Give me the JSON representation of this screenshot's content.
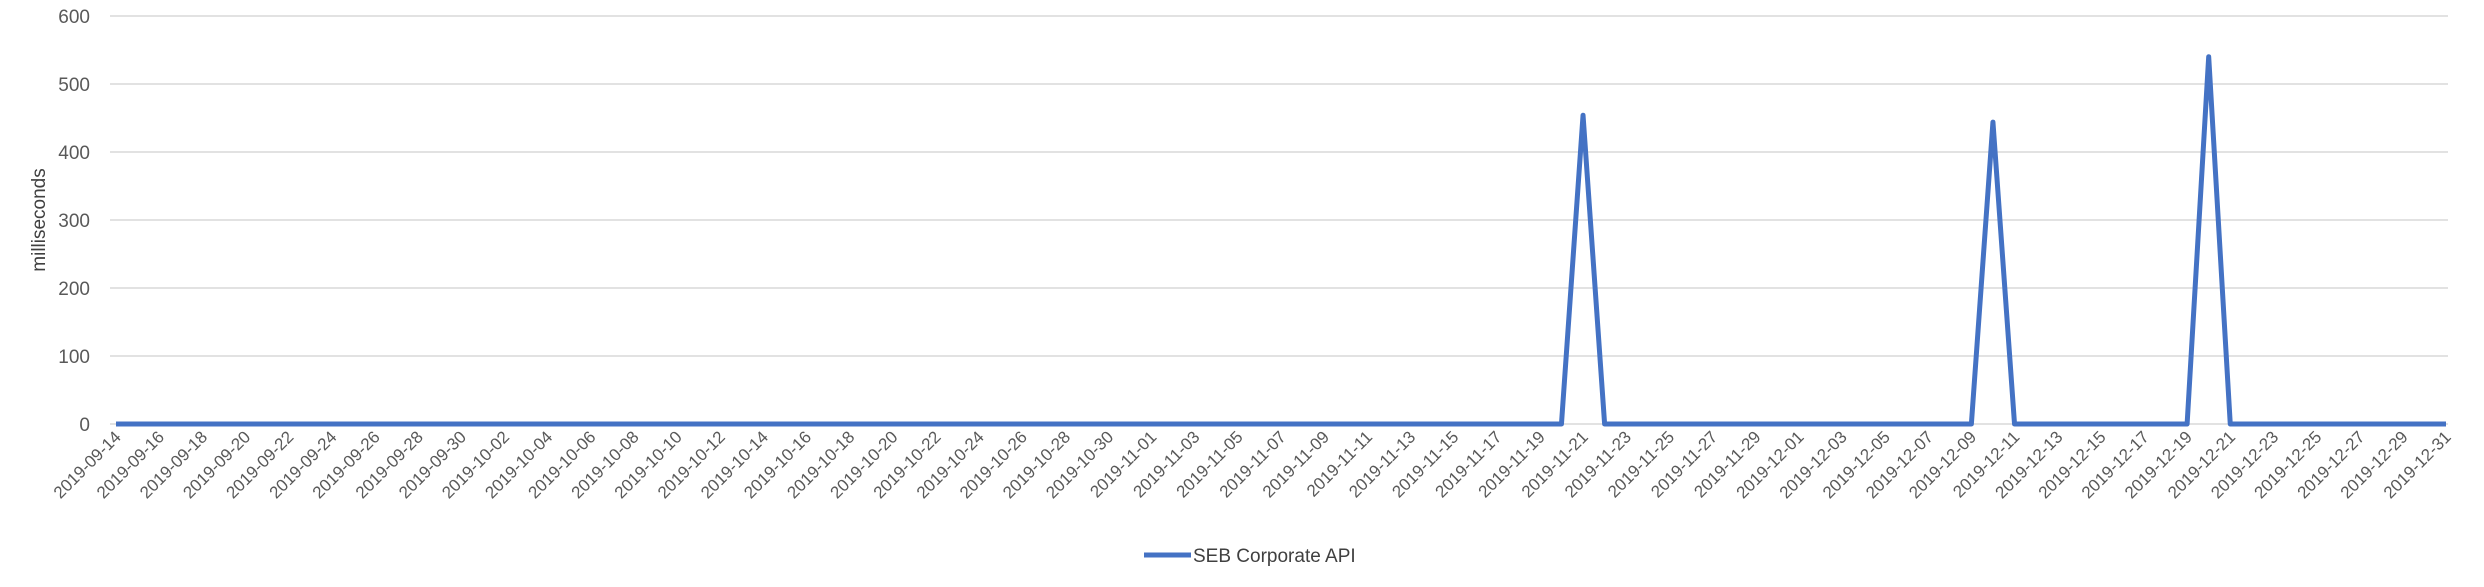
{
  "chart_data": {
    "type": "line",
    "title": "",
    "xlabel": "",
    "ylabel": "milliseconds",
    "ylim": [
      0,
      600
    ],
    "yticks": [
      0,
      100,
      200,
      300,
      400,
      500,
      600
    ],
    "grid": true,
    "legend_position": "bottom",
    "x": [
      "2019-09-14",
      "2019-09-15",
      "2019-09-16",
      "2019-09-17",
      "2019-09-18",
      "2019-09-19",
      "2019-09-20",
      "2019-09-21",
      "2019-09-22",
      "2019-09-23",
      "2019-09-24",
      "2019-09-25",
      "2019-09-26",
      "2019-09-27",
      "2019-09-28",
      "2019-09-29",
      "2019-09-30",
      "2019-10-01",
      "2019-10-02",
      "2019-10-03",
      "2019-10-04",
      "2019-10-05",
      "2019-10-06",
      "2019-10-07",
      "2019-10-08",
      "2019-10-09",
      "2019-10-10",
      "2019-10-11",
      "2019-10-12",
      "2019-10-13",
      "2019-10-14",
      "2019-10-15",
      "2019-10-16",
      "2019-10-17",
      "2019-10-18",
      "2019-10-19",
      "2019-10-20",
      "2019-10-21",
      "2019-10-22",
      "2019-10-23",
      "2019-10-24",
      "2019-10-25",
      "2019-10-26",
      "2019-10-27",
      "2019-10-28",
      "2019-10-29",
      "2019-10-30",
      "2019-10-31",
      "2019-11-01",
      "2019-11-02",
      "2019-11-03",
      "2019-11-04",
      "2019-11-05",
      "2019-11-06",
      "2019-11-07",
      "2019-11-08",
      "2019-11-09",
      "2019-11-10",
      "2019-11-11",
      "2019-11-12",
      "2019-11-13",
      "2019-11-14",
      "2019-11-15",
      "2019-11-16",
      "2019-11-17",
      "2019-11-18",
      "2019-11-19",
      "2019-11-20",
      "2019-11-21",
      "2019-11-22",
      "2019-11-23",
      "2019-11-24",
      "2019-11-25",
      "2019-11-26",
      "2019-11-27",
      "2019-11-28",
      "2019-11-29",
      "2019-11-30",
      "2019-12-01",
      "2019-12-02",
      "2019-12-03",
      "2019-12-04",
      "2019-12-05",
      "2019-12-06",
      "2019-12-07",
      "2019-12-08",
      "2019-12-09",
      "2019-12-10",
      "2019-12-11",
      "2019-12-12",
      "2019-12-13",
      "2019-12-14",
      "2019-12-15",
      "2019-12-16",
      "2019-12-17",
      "2019-12-18",
      "2019-12-19",
      "2019-12-20",
      "2019-12-21",
      "2019-12-22",
      "2019-12-23",
      "2019-12-24",
      "2019-12-25",
      "2019-12-26",
      "2019-12-27",
      "2019-12-28",
      "2019-12-29",
      "2019-12-30",
      "2019-12-31"
    ],
    "x_tick_labels": [
      "2019-09-14",
      "2019-09-16",
      "2019-09-18",
      "2019-09-20",
      "2019-09-22",
      "2019-09-24",
      "2019-09-26",
      "2019-09-28",
      "2019-09-30",
      "2019-10-02",
      "2019-10-04",
      "2019-10-06",
      "2019-10-08",
      "2019-10-10",
      "2019-10-12",
      "2019-10-14",
      "2019-10-16",
      "2019-10-18",
      "2019-10-20",
      "2019-10-22",
      "2019-10-24",
      "2019-10-26",
      "2019-10-28",
      "2019-10-30",
      "2019-11-01",
      "2019-11-03",
      "2019-11-05",
      "2019-11-07",
      "2019-11-09",
      "2019-11-11",
      "2019-11-13",
      "2019-11-15",
      "2019-11-17",
      "2019-11-19",
      "2019-11-21",
      "2019-11-23",
      "2019-11-25",
      "2019-11-27",
      "2019-11-29",
      "2019-12-01",
      "2019-12-03",
      "2019-12-05",
      "2019-12-07",
      "2019-12-09",
      "2019-12-11",
      "2019-12-13",
      "2019-12-15",
      "2019-12-17",
      "2019-12-19",
      "2019-12-21",
      "2019-12-23",
      "2019-12-25",
      "2019-12-27",
      "2019-12-29",
      "2019-12-31"
    ],
    "series": [
      {
        "name": "SEB Corporate API",
        "color": "#4472C4",
        "values": [
          0,
          0,
          0,
          0,
          0,
          0,
          0,
          0,
          0,
          0,
          0,
          0,
          0,
          0,
          0,
          0,
          0,
          0,
          0,
          0,
          0,
          0,
          0,
          0,
          0,
          0,
          0,
          0,
          0,
          0,
          0,
          0,
          0,
          0,
          0,
          0,
          0,
          0,
          0,
          0,
          0,
          0,
          0,
          0,
          0,
          0,
          0,
          0,
          0,
          0,
          0,
          0,
          0,
          0,
          0,
          0,
          0,
          0,
          0,
          0,
          0,
          0,
          0,
          0,
          0,
          0,
          0,
          0,
          454,
          0,
          0,
          0,
          0,
          0,
          0,
          0,
          0,
          0,
          0,
          0,
          0,
          0,
          0,
          0,
          0,
          0,
          0,
          444,
          0,
          0,
          0,
          0,
          0,
          0,
          0,
          0,
          0,
          540,
          0,
          0,
          0,
          0,
          0,
          0,
          0,
          0,
          0,
          0,
          0
        ]
      }
    ]
  },
  "colors": {
    "grid": "#D9D9D9",
    "tick_text": "#595959",
    "background": "#FFFFFF"
  }
}
